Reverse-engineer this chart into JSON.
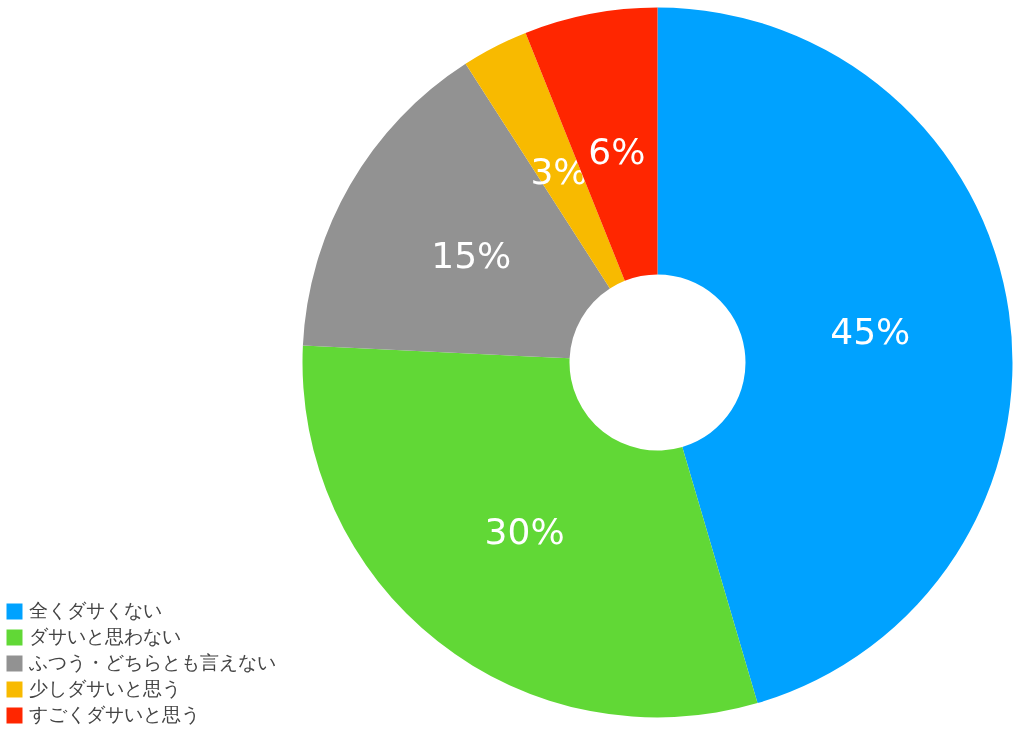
{
  "chart_data": {
    "type": "donut",
    "categories": [
      "全くダサくない",
      "ダサいと思わない",
      "ふつう・どちらとも言えない",
      "少しダサいと思う",
      "すごくダサいと思う"
    ],
    "values": [
      45,
      30,
      15,
      3,
      6
    ],
    "colors": [
      "#00a2ff",
      "#61d836",
      "#929292",
      "#f8ba00",
      "#ff2600"
    ],
    "value_labels": [
      "45%",
      "30%",
      "15%",
      "3%",
      "6%"
    ],
    "legend": "bottom left"
  }
}
